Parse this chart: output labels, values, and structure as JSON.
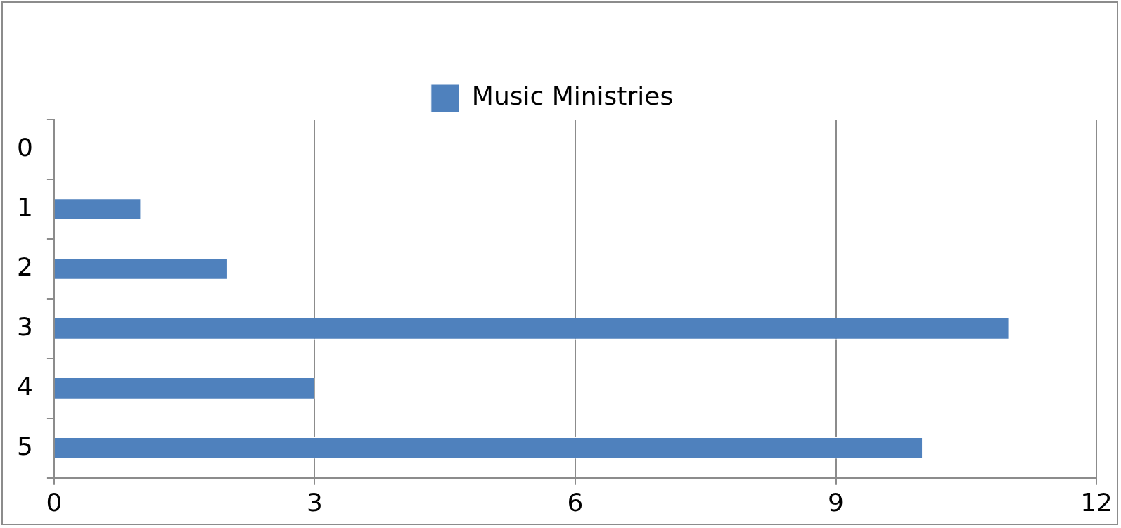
{
  "chart_data": {
    "type": "bar",
    "orientation": "horizontal",
    "categories": [
      "0",
      "1",
      "2",
      "3",
      "4",
      "5"
    ],
    "series": [
      {
        "name": "Music Ministries",
        "color": "#4f81bd",
        "values": [
          0,
          1,
          2,
          11,
          3,
          10
        ]
      }
    ],
    "xlim": [
      0,
      12
    ],
    "xticks": [
      0,
      3,
      6,
      9,
      12
    ],
    "grid": "x",
    "legend": "top"
  }
}
